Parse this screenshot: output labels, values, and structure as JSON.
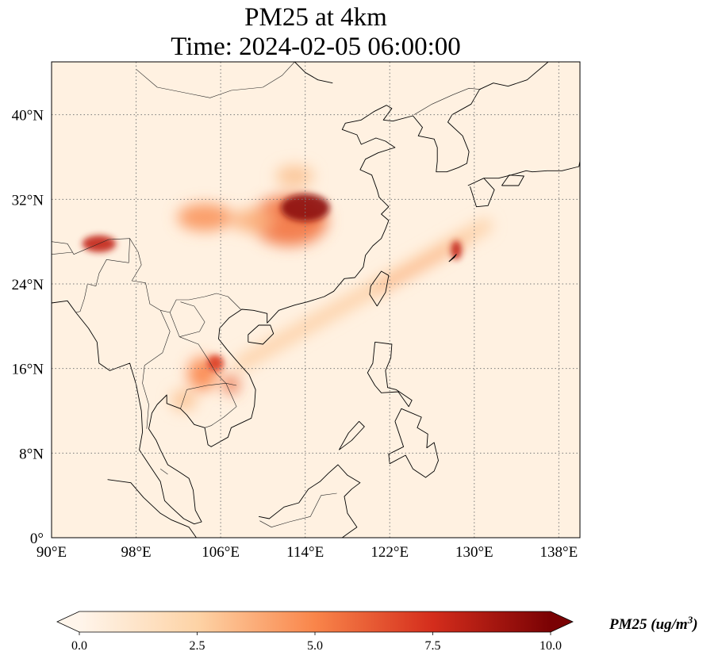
{
  "title": {
    "line1": "PM25 at 4km",
    "line2": "Time: 2024-02-05 06:00:00"
  },
  "map": {
    "extent": {
      "lon": [
        90,
        140
      ],
      "lat": [
        0,
        45
      ]
    },
    "lon_ticks": [
      {
        "value": 90,
        "label": "90°E"
      },
      {
        "value": 98,
        "label": "98°E"
      },
      {
        "value": 106,
        "label": "106°E"
      },
      {
        "value": 114,
        "label": "114°E"
      },
      {
        "value": 122,
        "label": "122°E"
      },
      {
        "value": 130,
        "label": "130°E"
      },
      {
        "value": 138,
        "label": "138°E"
      }
    ],
    "lat_ticks": [
      {
        "value": 0,
        "label": "0°"
      },
      {
        "value": 8,
        "label": "8°N"
      },
      {
        "value": 16,
        "label": "16°N"
      },
      {
        "value": 24,
        "label": "24°N"
      },
      {
        "value": 32,
        "label": "32°N"
      },
      {
        "value": 40,
        "label": "40°N"
      }
    ],
    "gridlines": true,
    "colormap": [
      "#fff5eb",
      "#fdd0a2",
      "#fd8d3c",
      "#d94801",
      "#7f2704"
    ]
  },
  "colorbar": {
    "min": 0,
    "max": 10,
    "extend": "both",
    "ticks": [
      {
        "value": 0,
        "label": "0.0"
      },
      {
        "value": 2.5,
        "label": "2.5"
      },
      {
        "value": 5,
        "label": "5.0"
      },
      {
        "value": 7.5,
        "label": "7.5"
      },
      {
        "value": 10,
        "label": "10.0"
      }
    ],
    "label_name": "PM25 (ug/m",
    "label_exp": "3",
    "label_close": ")",
    "stops": [
      {
        "value": 0,
        "color": "#fff5eb"
      },
      {
        "value": 2.5,
        "color": "#fdd3a6"
      },
      {
        "value": 5,
        "color": "#f9854a"
      },
      {
        "value": 7.5,
        "color": "#d42d1c"
      },
      {
        "value": 10,
        "color": "#7a0204"
      }
    ]
  },
  "plumes": [
    {
      "lon": 114.0,
      "lat": 31.2,
      "rx": 2.3,
      "ry": 1.3,
      "value": 9.5
    },
    {
      "lon": 112.5,
      "lat": 30.0,
      "rx": 3.6,
      "ry": 2.4,
      "value": 5.5
    },
    {
      "lon": 104.5,
      "lat": 30.3,
      "rx": 2.6,
      "ry": 1.3,
      "value": 4.5
    },
    {
      "lon": 109.0,
      "lat": 30.0,
      "rx": 2.0,
      "ry": 1.1,
      "value": 3.5
    },
    {
      "lon": 113.0,
      "lat": 34.2,
      "rx": 1.8,
      "ry": 1.0,
      "value": 3.0
    },
    {
      "lon": 94.5,
      "lat": 27.8,
      "rx": 1.6,
      "ry": 0.8,
      "value": 8.0
    },
    {
      "lon": 104.3,
      "lat": 15.5,
      "rx": 1.4,
      "ry": 1.6,
      "value": 5.0
    },
    {
      "lon": 105.5,
      "lat": 16.5,
      "rx": 0.8,
      "ry": 0.8,
      "value": 7.0
    },
    {
      "lon": 107.0,
      "lat": 14.5,
      "rx": 0.7,
      "ry": 0.9,
      "value": 6.0
    },
    {
      "lon": 102.5,
      "lat": 13.0,
      "rx": 1.2,
      "ry": 1.0,
      "value": 3.0
    },
    {
      "lon": 128.3,
      "lat": 27.2,
      "rx": 0.5,
      "ry": 0.9,
      "value": 8.0
    }
  ],
  "bands": [
    {
      "from": [
        108.0,
        16.5
      ],
      "to": [
        131.0,
        29.5
      ],
      "width": 1.4,
      "value": 2.8
    },
    {
      "from": [
        121.0,
        23.5
      ],
      "to": [
        129.0,
        28.0
      ],
      "width": 0.7,
      "value": 4.0
    }
  ],
  "coastlines": [
    [
      [
        90,
        22.2
      ],
      [
        91.5,
        22.4
      ],
      [
        92.3,
        21.3
      ],
      [
        93.5,
        19.8
      ],
      [
        94.3,
        18.5
      ],
      [
        94.5,
        16.5
      ],
      [
        95.5,
        15.8
      ],
      [
        97.4,
        16.5
      ],
      [
        98.0,
        14.5
      ],
      [
        98.5,
        12.0
      ],
      [
        98.6,
        10.0
      ],
      [
        98.3,
        8.3
      ],
      [
        99.5,
        6.5
      ],
      [
        100.3,
        5.3
      ],
      [
        100.7,
        3.5
      ],
      [
        101.3,
        2.9
      ],
      [
        102.5,
        1.8
      ],
      [
        103.5,
        1.3
      ],
      [
        104.2,
        1.5
      ],
      [
        103.6,
        2.6
      ],
      [
        103.4,
        4.5
      ],
      [
        103.0,
        5.6
      ],
      [
        102.1,
        6.2
      ],
      [
        101.0,
        6.9
      ],
      [
        100.3,
        8.3
      ],
      [
        99.9,
        9.2
      ],
      [
        99.2,
        10.3
      ],
      [
        99.5,
        11.8
      ],
      [
        100.0,
        12.6
      ],
      [
        100.9,
        13.5
      ],
      [
        100.9,
        12.7
      ],
      [
        102.2,
        12.2
      ],
      [
        102.8,
        11.6
      ],
      [
        103.5,
        10.7
      ],
      [
        104.5,
        10.4
      ],
      [
        104.8,
        8.8
      ],
      [
        105.1,
        8.6
      ],
      [
        106.7,
        9.5
      ],
      [
        107.0,
        10.4
      ],
      [
        108.9,
        11.3
      ],
      [
        109.2,
        12.5
      ],
      [
        109.3,
        14.0
      ],
      [
        108.7,
        15.4
      ],
      [
        107.8,
        16.4
      ],
      [
        106.6,
        17.8
      ],
      [
        105.8,
        18.8
      ],
      [
        105.9,
        19.8
      ],
      [
        106.8,
        20.8
      ],
      [
        108.0,
        21.6
      ],
      [
        109.1,
        21.5
      ],
      [
        110.4,
        21.2
      ],
      [
        110.4,
        20.3
      ],
      [
        111.5,
        21.5
      ],
      [
        113.0,
        22.0
      ],
      [
        114.2,
        22.3
      ],
      [
        115.8,
        22.8
      ],
      [
        116.7,
        23.3
      ],
      [
        117.7,
        24.5
      ],
      [
        118.7,
        24.6
      ],
      [
        119.5,
        25.6
      ],
      [
        119.7,
        26.7
      ],
      [
        120.4,
        27.6
      ],
      [
        121.2,
        28.3
      ],
      [
        121.6,
        29.2
      ],
      [
        121.9,
        30.0
      ],
      [
        121.2,
        30.6
      ],
      [
        121.9,
        31.3
      ],
      [
        121.0,
        32.2
      ],
      [
        120.8,
        32.9
      ],
      [
        120.3,
        34.3
      ],
      [
        119.2,
        34.8
      ],
      [
        119.7,
        35.8
      ],
      [
        120.9,
        36.4
      ],
      [
        122.5,
        36.9
      ],
      [
        121.6,
        37.5
      ],
      [
        120.7,
        37.8
      ],
      [
        119.3,
        37.2
      ],
      [
        118.9,
        38.1
      ],
      [
        117.5,
        38.6
      ],
      [
        117.8,
        39.2
      ],
      [
        119.3,
        39.5
      ],
      [
        120.5,
        40.3
      ],
      [
        121.7,
        40.9
      ],
      [
        122.2,
        40.6
      ],
      [
        121.4,
        39.5
      ],
      [
        122.3,
        39.4
      ],
      [
        124.2,
        39.9
      ],
      [
        125.1,
        38.8
      ],
      [
        124.7,
        38.0
      ],
      [
        126.2,
        37.7
      ],
      [
        126.5,
        36.9
      ],
      [
        126.5,
        35.6
      ],
      [
        126.4,
        34.6
      ],
      [
        127.4,
        34.6
      ],
      [
        128.5,
        35.0
      ],
      [
        129.3,
        35.4
      ],
      [
        129.5,
        36.5
      ],
      [
        128.9,
        38.0
      ],
      [
        127.5,
        39.3
      ],
      [
        127.9,
        40.0
      ],
      [
        129.7,
        41.0
      ],
      [
        130.5,
        42.4
      ]
    ],
    [
      [
        113.0,
        45.0
      ],
      [
        114.0,
        44.0
      ],
      [
        115.2,
        43.3
      ],
      [
        116.6,
        43.0
      ]
    ],
    [
      [
        108.6,
        18.5
      ],
      [
        110.0,
        18.3
      ],
      [
        111.0,
        19.3
      ],
      [
        110.7,
        20.1
      ],
      [
        109.6,
        20.1
      ],
      [
        108.6,
        19.2
      ],
      [
        108.6,
        18.5
      ]
    ],
    [
      [
        120.8,
        21.9
      ],
      [
        121.6,
        23.2
      ],
      [
        121.9,
        24.8
      ],
      [
        121.2,
        25.2
      ],
      [
        120.2,
        23.8
      ],
      [
        120.1,
        23.0
      ],
      [
        120.8,
        21.9
      ]
    ],
    [
      [
        120.6,
        18.5
      ],
      [
        122.2,
        18.3
      ],
      [
        122.1,
        17.0
      ],
      [
        121.6,
        15.8
      ],
      [
        121.8,
        14.2
      ],
      [
        122.6,
        14.0
      ],
      [
        124.1,
        13.0
      ],
      [
        123.8,
        12.4
      ],
      [
        122.8,
        13.8
      ],
      [
        121.2,
        13.7
      ],
      [
        120.6,
        14.4
      ],
      [
        119.9,
        15.6
      ],
      [
        120.4,
        16.5
      ],
      [
        120.6,
        18.5
      ]
    ],
    [
      [
        122.5,
        11.0
      ],
      [
        123.1,
        12.2
      ],
      [
        125.0,
        11.4
      ],
      [
        124.6,
        10.4
      ],
      [
        125.6,
        9.8
      ],
      [
        125.5,
        8.5
      ],
      [
        126.2,
        9.0
      ],
      [
        126.6,
        7.3
      ],
      [
        126.2,
        6.3
      ],
      [
        125.4,
        5.7
      ],
      [
        124.2,
        6.5
      ],
      [
        123.5,
        7.8
      ],
      [
        122.0,
        7.0
      ],
      [
        121.9,
        7.9
      ],
      [
        123.3,
        8.6
      ],
      [
        122.5,
        11.0
      ]
    ],
    [
      [
        117.2,
        8.3
      ],
      [
        118.4,
        9.2
      ],
      [
        119.6,
        10.5
      ],
      [
        119.1,
        11.0
      ],
      [
        118.1,
        9.9
      ],
      [
        117.2,
        8.3
      ]
    ],
    [
      [
        109.6,
        2.0
      ],
      [
        110.6,
        1.8
      ],
      [
        112.0,
        2.9
      ],
      [
        113.4,
        3.3
      ],
      [
        114.3,
        4.6
      ],
      [
        115.4,
        5.3
      ],
      [
        116.2,
        6.1
      ],
      [
        117.1,
        6.9
      ],
      [
        118.0,
        5.9
      ],
      [
        119.2,
        5.2
      ],
      [
        118.4,
        4.6
      ],
      [
        117.7,
        3.9
      ],
      [
        118.0,
        2.3
      ],
      [
        118.9,
        1.0
      ],
      [
        118.2,
        0.5
      ],
      [
        117.5,
        0.0
      ]
    ],
    [
      [
        95.3,
        5.5
      ],
      [
        97.5,
        5.2
      ],
      [
        98.7,
        3.8
      ],
      [
        100.3,
        2.3
      ],
      [
        101.3,
        1.7
      ],
      [
        103.0,
        1.0
      ],
      [
        103.7,
        0.0
      ]
    ],
    [
      [
        129.4,
        33.3
      ],
      [
        130.9,
        34.0
      ],
      [
        132.3,
        34.0
      ],
      [
        133.5,
        34.3
      ],
      [
        134.9,
        34.7
      ],
      [
        135.5,
        34.6
      ],
      [
        136.9,
        34.7
      ],
      [
        138.3,
        34.7
      ],
      [
        139.9,
        35.1
      ],
      [
        140.0,
        35.6
      ]
    ],
    [
      [
        129.6,
        33.2
      ],
      [
        130.2,
        31.3
      ],
      [
        131.3,
        31.4
      ],
      [
        131.9,
        32.9
      ],
      [
        130.9,
        34.0
      ]
    ],
    [
      [
        132.6,
        33.3
      ],
      [
        134.2,
        33.3
      ],
      [
        134.7,
        34.2
      ],
      [
        133.3,
        34.3
      ],
      [
        132.6,
        33.3
      ]
    ],
    [
      [
        127.6,
        26.1
      ],
      [
        128.3,
        26.8
      ],
      [
        128.1,
        26.5
      ],
      [
        127.6,
        26.1
      ]
    ],
    [
      [
        130.5,
        42.4
      ],
      [
        131.8,
        43.0
      ],
      [
        133.2,
        42.7
      ],
      [
        135.0,
        43.3
      ],
      [
        137.0,
        45.0
      ]
    ]
  ],
  "borders": [
    [
      [
        90,
        28.0
      ],
      [
        91.5,
        27.8
      ],
      [
        92.1,
        26.8
      ],
      [
        94.0,
        27.6
      ],
      [
        95.4,
        28.2
      ],
      [
        97.4,
        28.3
      ],
      [
        98.2,
        27.0
      ],
      [
        98.5,
        25.8
      ],
      [
        97.6,
        24.3
      ],
      [
        98.9,
        24.1
      ],
      [
        99.3,
        22.1
      ],
      [
        100.3,
        21.5
      ],
      [
        101.2,
        21.3
      ],
      [
        101.8,
        22.5
      ],
      [
        103.0,
        22.5
      ],
      [
        104.5,
        22.8
      ],
      [
        105.6,
        23.1
      ],
      [
        106.7,
        22.8
      ],
      [
        107.9,
        21.6
      ]
    ],
    [
      [
        98.0,
        44.3
      ],
      [
        100.0,
        42.6
      ],
      [
        103.0,
        42.0
      ],
      [
        105.0,
        41.6
      ],
      [
        107.0,
        42.3
      ],
      [
        110.0,
        42.6
      ],
      [
        111.8,
        43.7
      ],
      [
        113.0,
        45.0
      ]
    ],
    [
      [
        97.4,
        28.3
      ],
      [
        97.3,
        26.0
      ],
      [
        95.2,
        26.3
      ],
      [
        94.5,
        25.0
      ],
      [
        94.2,
        23.8
      ],
      [
        93.4,
        24.0
      ],
      [
        93.1,
        22.6
      ],
      [
        92.7,
        21.4
      ],
      [
        92.3,
        21.3
      ]
    ],
    [
      [
        100.3,
        21.5
      ],
      [
        101.2,
        19.5
      ],
      [
        100.5,
        17.5
      ],
      [
        98.8,
        16.3
      ],
      [
        98.6,
        14.6
      ],
      [
        99.2,
        12.6
      ],
      [
        99.0,
        10.3
      ]
    ],
    [
      [
        101.2,
        21.3
      ],
      [
        102.1,
        19.0
      ],
      [
        103.9,
        18.3
      ],
      [
        104.8,
        16.9
      ],
      [
        105.6,
        15.5
      ],
      [
        106.5,
        14.6
      ],
      [
        107.5,
        14.4
      ]
    ],
    [
      [
        102.2,
        12.2
      ],
      [
        102.8,
        14.0
      ],
      [
        104.7,
        14.4
      ],
      [
        106.5,
        14.6
      ],
      [
        107.5,
        12.4
      ],
      [
        106.3,
        11.4
      ],
      [
        105.1,
        10.6
      ],
      [
        104.5,
        10.4
      ]
    ],
    [
      [
        102.1,
        19.0
      ],
      [
        104.0,
        19.5
      ],
      [
        104.5,
        20.4
      ],
      [
        103.5,
        21.9
      ],
      [
        102.2,
        22.3
      ]
    ],
    [
      [
        101.0,
        6.0
      ],
      [
        100.3,
        6.5
      ]
    ],
    [
      [
        109.7,
        1.6
      ],
      [
        110.8,
        1.0
      ],
      [
        112.5,
        1.5
      ],
      [
        114.5,
        2.0
      ],
      [
        115.5,
        4.0
      ],
      [
        117.0,
        4.2
      ]
    ],
    [
      [
        88,
        27.5
      ],
      [
        90.0,
        26.8
      ],
      [
        92.0,
        27.0
      ]
    ],
    [
      [
        124.3,
        40.0
      ],
      [
        126.0,
        41.0
      ],
      [
        128.0,
        41.9
      ],
      [
        129.5,
        42.5
      ],
      [
        130.6,
        42.4
      ]
    ]
  ]
}
